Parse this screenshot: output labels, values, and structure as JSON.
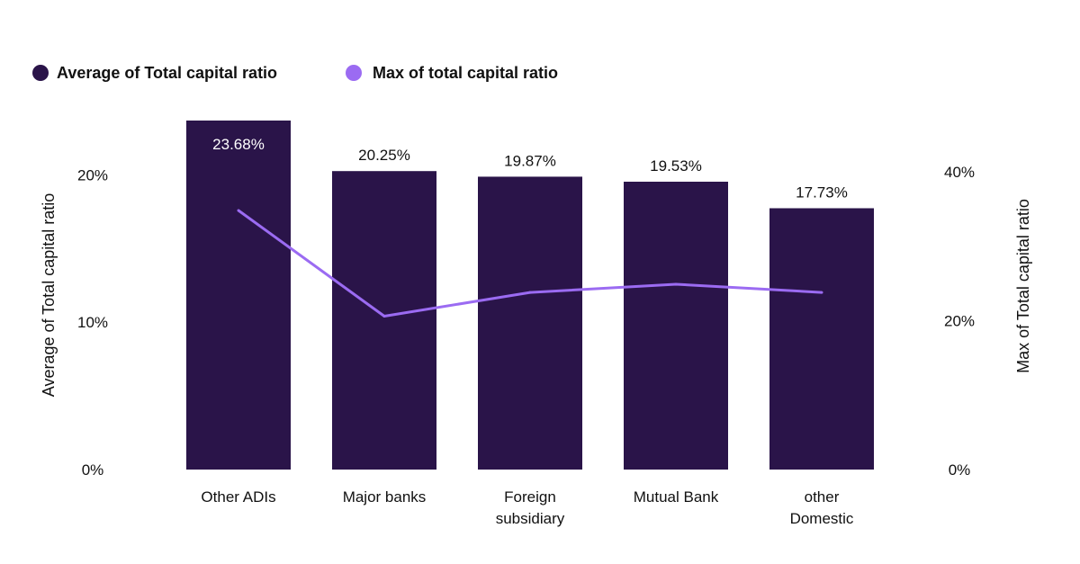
{
  "chart_data": {
    "type": "bar",
    "categories": [
      "Other ADIs",
      "Major banks",
      "Foreign subsidiary",
      "Mutual Bank",
      "other Domestic"
    ],
    "category_lines": [
      [
        "Other ADIs"
      ],
      [
        "Major banks"
      ],
      [
        "Foreign",
        "subsidiary"
      ],
      [
        "Mutual Bank"
      ],
      [
        "other",
        "Domestic"
      ]
    ],
    "series": [
      {
        "name": "Average of Total capital ratio",
        "type": "bar",
        "axis": "left",
        "color": "#2a1449",
        "values": [
          23.68,
          20.25,
          19.87,
          19.53,
          17.73
        ],
        "data_labels": [
          "23.68%",
          "20.25%",
          "19.87%",
          "19.53%",
          "17.73%"
        ]
      },
      {
        "name": "Max of total capital ratio",
        "type": "line",
        "axis": "right",
        "color": "#9b6bf2",
        "values": [
          34.8,
          20.6,
          23.8,
          24.9,
          23.8
        ]
      }
    ],
    "legend": {
      "position": "top-left",
      "items": [
        "Average of Total capital ratio",
        "Max of total capital ratio"
      ]
    },
    "y_left": {
      "label": "Average of Total capital ratio",
      "ylim": [
        0,
        23.68
      ],
      "ticks": [
        0,
        10,
        20
      ],
      "tick_labels": [
        "0%",
        "10%",
        "20%"
      ]
    },
    "y_right": {
      "label": "Max of Total capital ratio",
      "ylim": [
        0,
        40
      ],
      "ticks": [
        0,
        20,
        40
      ],
      "tick_labels": [
        "0%",
        "20%",
        "40%"
      ]
    },
    "grid": false
  }
}
